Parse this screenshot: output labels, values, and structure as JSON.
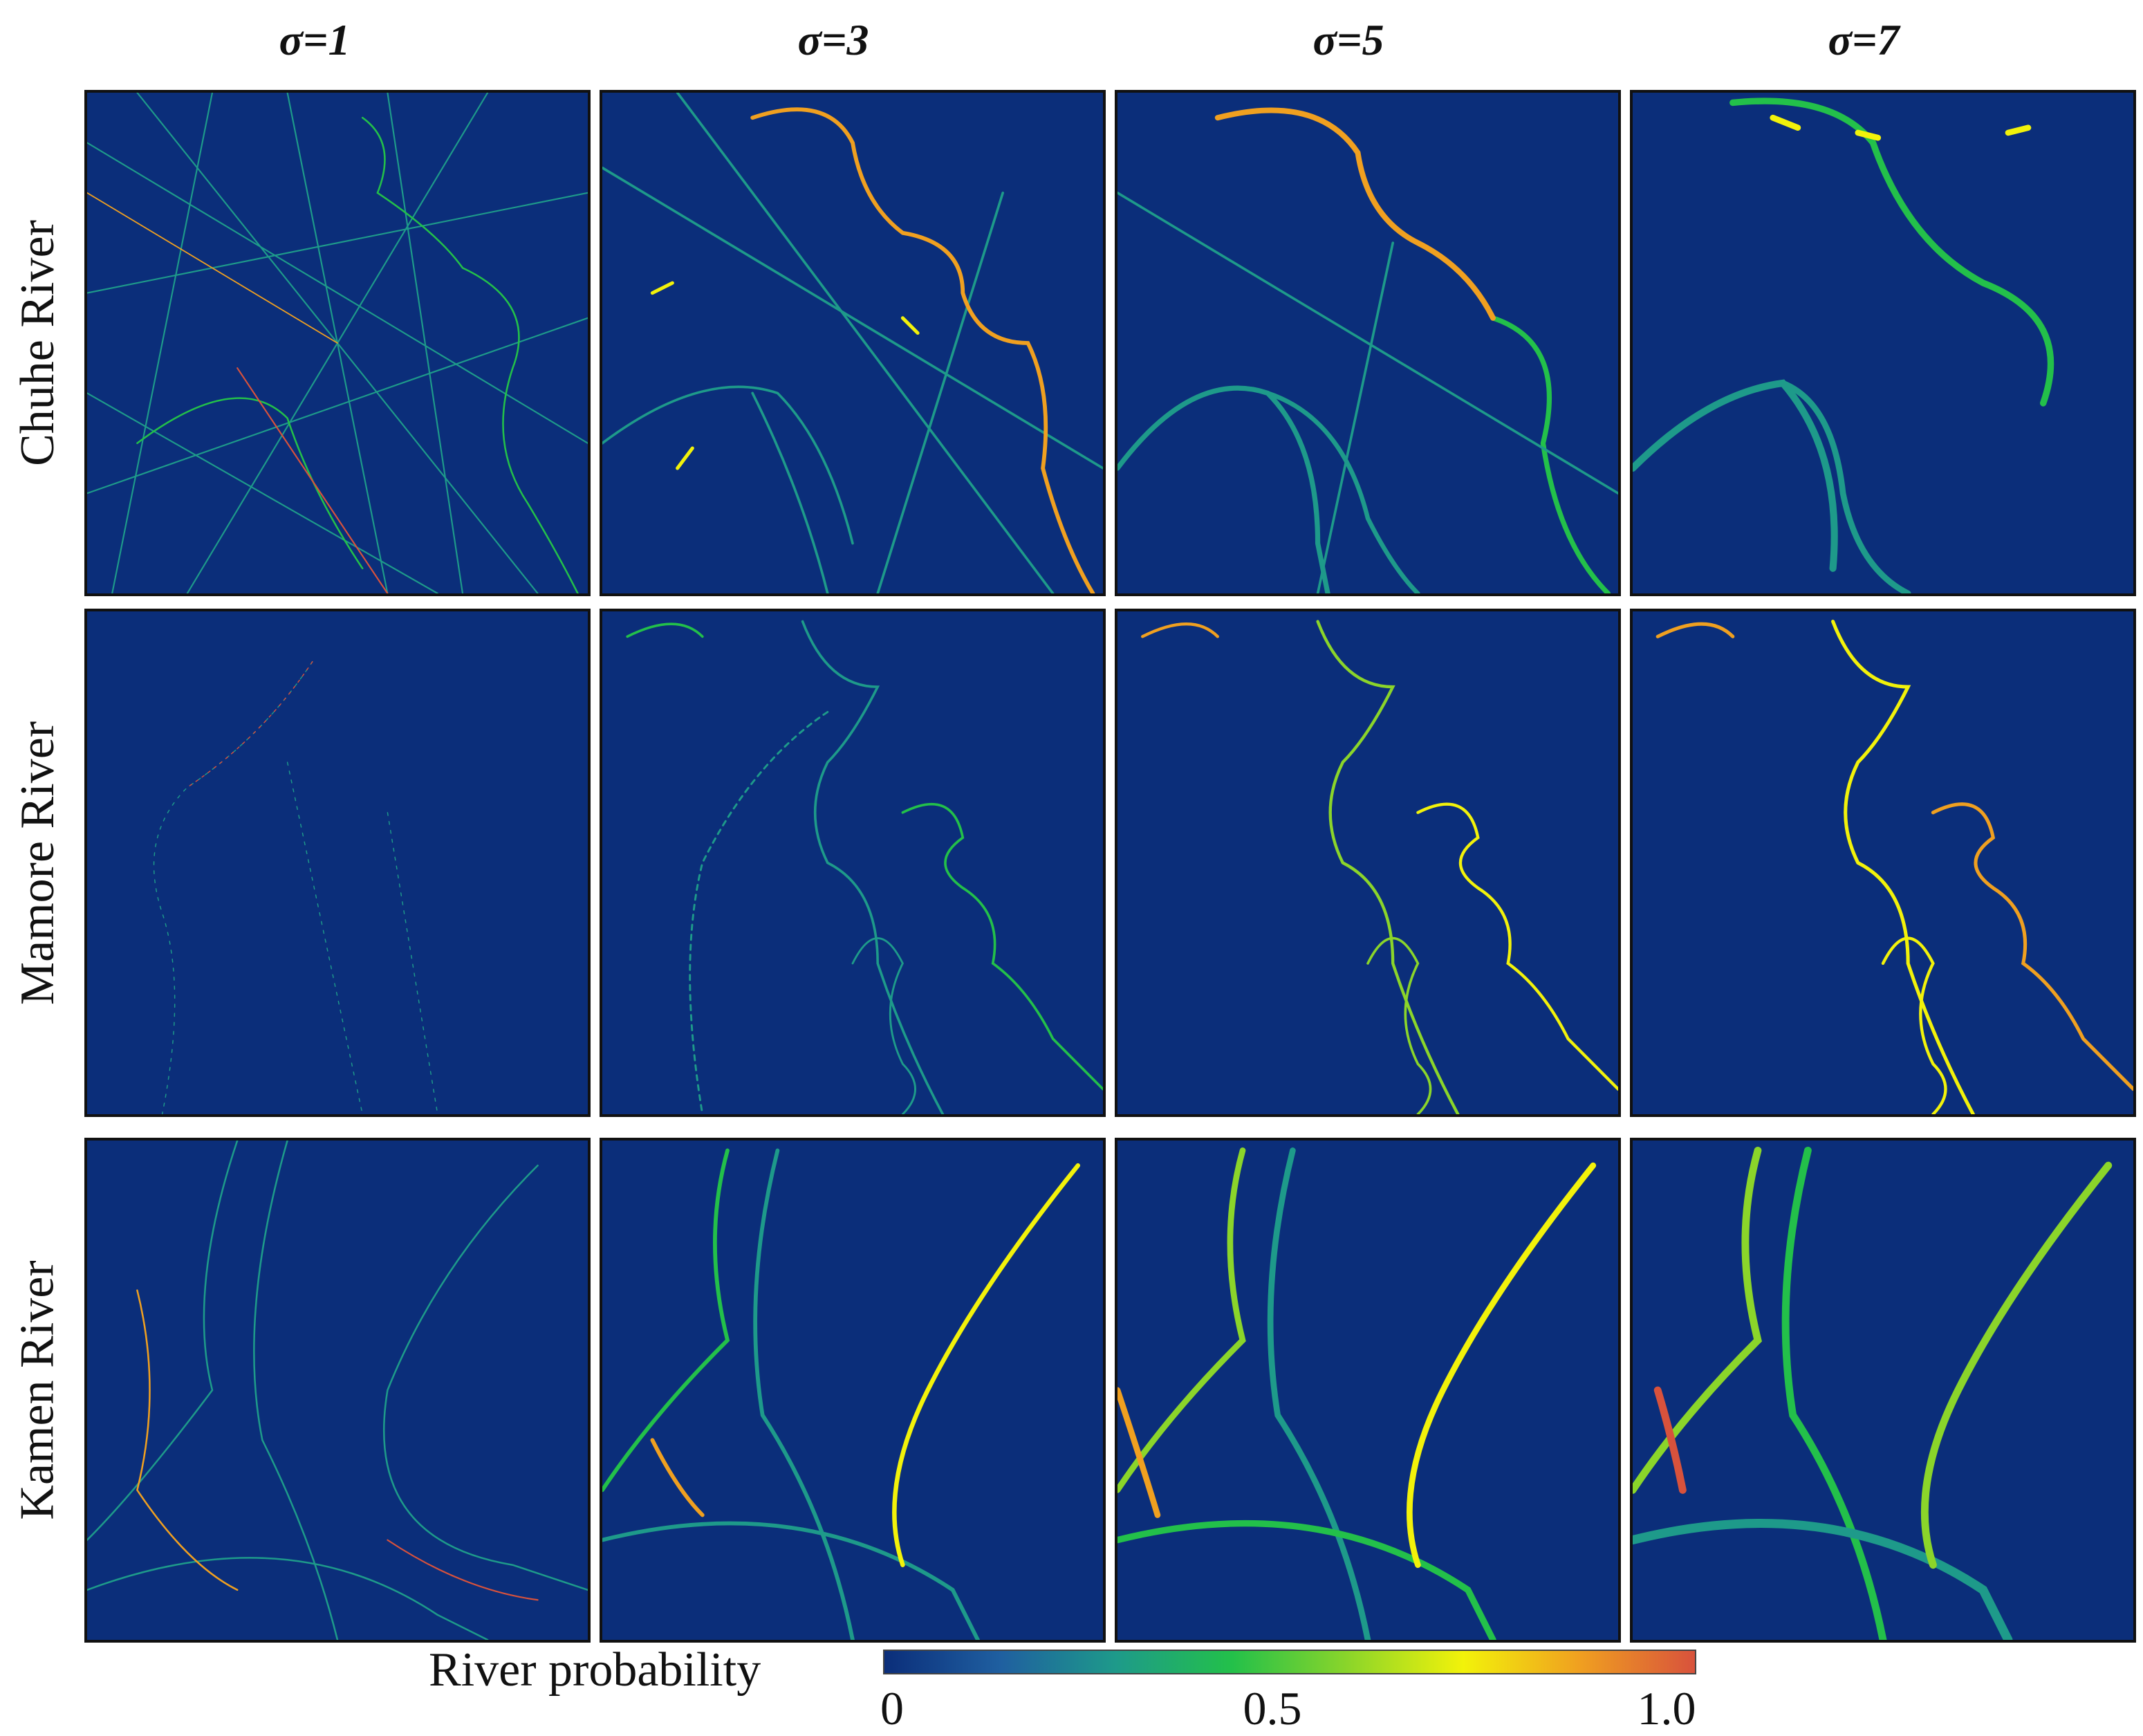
{
  "columns": [
    "σ=1",
    "σ=3",
    "σ=5",
    "σ=7"
  ],
  "rows": [
    "Chuhe River",
    "Mamore River",
    "Kamen River"
  ],
  "colorbar": {
    "label": "River probability",
    "ticks": [
      "0",
      "0.5",
      "1.0"
    ],
    "colors": [
      "#0b2e7a",
      "#1f5fa0",
      "#1e9a8a",
      "#23c04a",
      "#8bd52a",
      "#f2f20a",
      "#f0a020",
      "#d8523c"
    ]
  }
}
